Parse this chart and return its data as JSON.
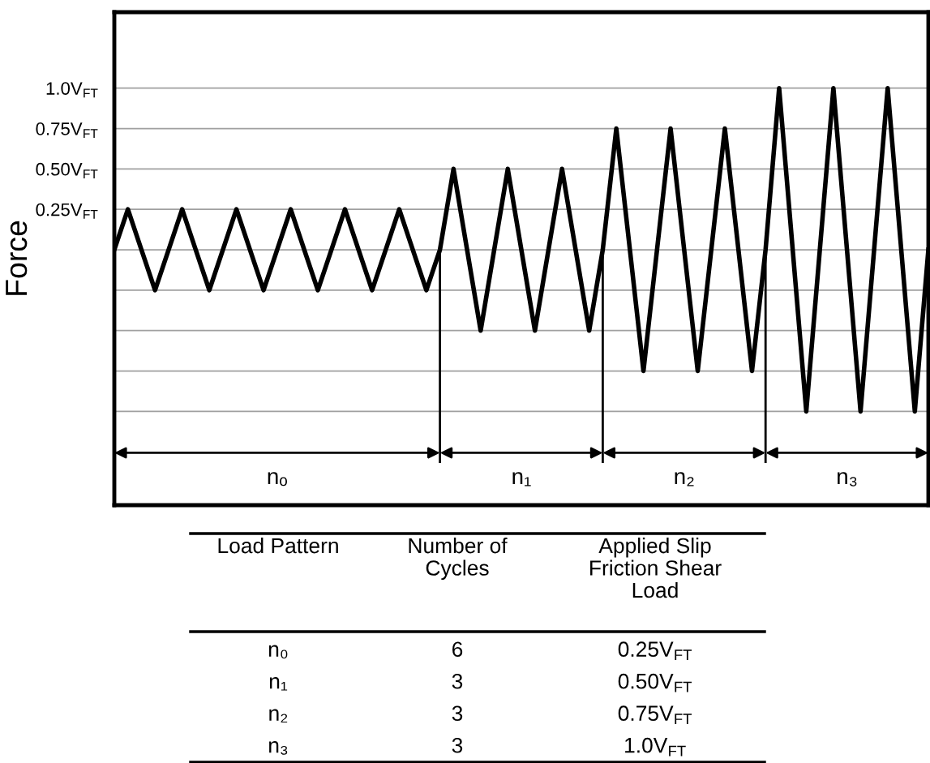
{
  "chart_data": {
    "type": "line",
    "ylabel": "Force",
    "categories": [
      null,
      null,
      null,
      null,
      null,
      null,
      null,
      null,
      null,
      null,
      null,
      null,
      null,
      null,
      null,
      null,
      null,
      null,
      null,
      null,
      null,
      null,
      null,
      null,
      null,
      null,
      null,
      null,
      null,
      null,
      null,
      null,
      null,
      null,
      null,
      null,
      null,
      null,
      null,
      null,
      null,
      null,
      null,
      null,
      null,
      null,
      null,
      null,
      null,
      null,
      null,
      null,
      null,
      null,
      null,
      null,
      null,
      null,
      null,
      null,
      null
    ],
    "series": [
      {
        "color": "#000000",
        "values": [
          0,
          0.25,
          0,
          -0.25,
          0,
          0.25,
          0,
          -0.25,
          0,
          0.25,
          0,
          -0.25,
          0,
          0.25,
          0,
          -0.25,
          0,
          0.25,
          0,
          -0.25,
          0,
          0.25,
          0,
          -0.25,
          0,
          0.5,
          0,
          -0.5,
          0,
          0.5,
          0,
          -0.5,
          0,
          0.5,
          0,
          -0.5,
          0,
          0.75,
          0,
          -0.75,
          0,
          0.75,
          0,
          -0.75,
          0,
          0.75,
          0,
          -0.75,
          0,
          1,
          0,
          -1,
          0,
          1,
          0,
          -1,
          0,
          1,
          0,
          -1,
          0
        ]
      }
    ],
    "marker": "none",
    "line_style": "solid",
    "ylim": [
      -1.58,
      1.47
    ],
    "yticks": [
      {
        "value": -1,
        "label": null
      },
      {
        "value": -0.75,
        "label": null
      },
      {
        "value": -0.5,
        "label": null
      },
      {
        "value": -0.25,
        "label": null
      },
      {
        "value": 0,
        "label": null
      },
      {
        "value": 0.25,
        "label": "0.25V$_{FT}$"
      },
      {
        "value": 0.5,
        "label": "0.50V$_{FT}$"
      },
      {
        "value": 0.75,
        "label": "0.75V$_{FT}$"
      },
      {
        "value": 1,
        "label": "1.0V$_{FT}$"
      }
    ],
    "grid": "y",
    "tick_labels": "y",
    "annotations": [
      "nₒ",
      "n₁",
      "n₂",
      "n₃",
      "Load Pattern",
      "Number of\nCycles",
      "Applied Slip\nFriction Shear\nLoad",
      "n₀",
      "6",
      "0.25V$_{FT}$",
      "n₁",
      "3",
      "0.50V$_{FT}$",
      "n₂",
      "3",
      "0.75V$_{FT}$",
      "n₃",
      "3",
      "1.0V$_{FT}$"
    ]
  }
}
